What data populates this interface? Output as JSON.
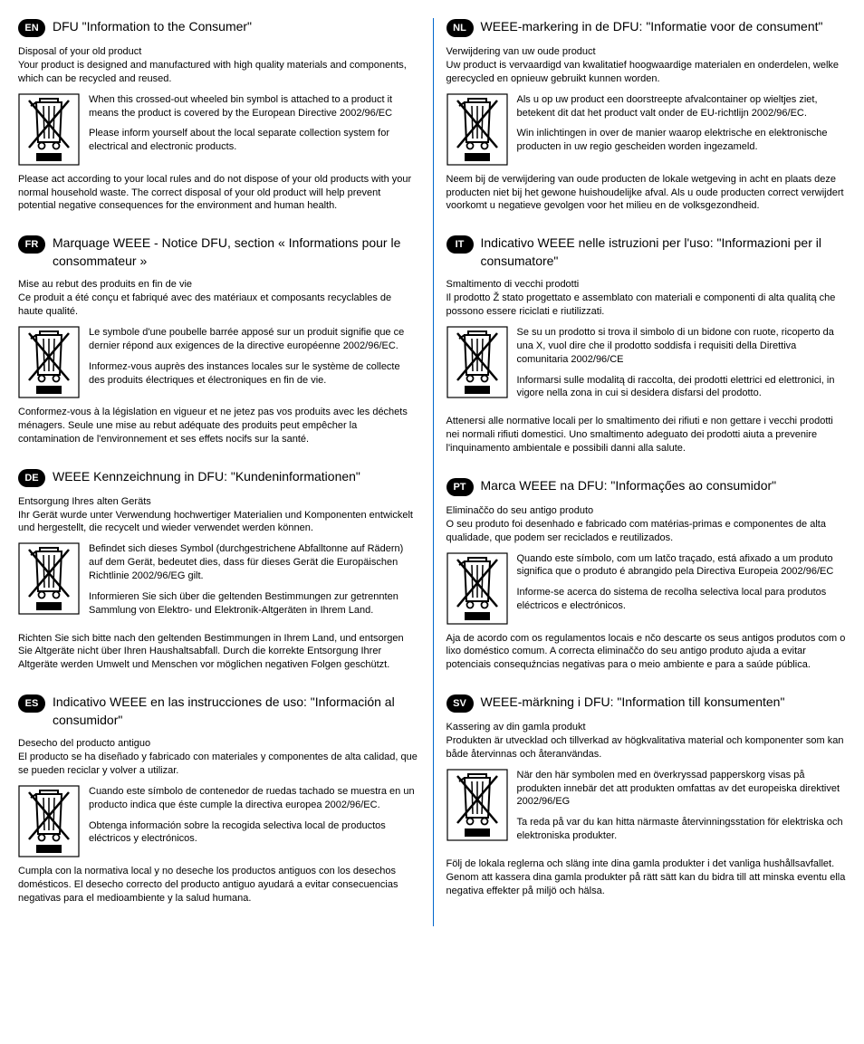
{
  "background_color": "#ffffff",
  "text_color": "#000000",
  "accent_color": "#0066cc",
  "badge_bg": "#000000",
  "badge_fg": "#ffffff",
  "font_family": "Arial, Helvetica, sans-serif",
  "title_fontsize": 14,
  "body_fontsize": 11,
  "icon_stroke": "#000000",
  "icon_fill_bar": "#000000",
  "left": [
    {
      "code": "EN",
      "title": "DFU \"Information to the Consumer\"",
      "intro_sub": "Disposal of your old product",
      "intro": "Your product is designed and manufactured with high quality materials and components, which can be recycled and reused.",
      "p1": "When this crossed-out wheeled bin symbol is attached to a product it means the product is covered by the European Directive 2002/96/EC",
      "p2": "Please inform yourself about the local separate collection system for electrical and electronic products.",
      "outro": "Please act according to your local rules and do not dispose of your old products with your normal household waste. The correct disposal of your old product will help prevent potential negative consequences for the environment and human health."
    },
    {
      "code": "FR",
      "title": "Marquage WEEE - Notice DFU, section « Informations pour le consommateur »",
      "intro_sub": "Mise au rebut des produits en fin de vie",
      "intro": "Ce produit a été conçu et fabriqué avec des matériaux et composants recyclables de haute qualité.",
      "p1": "Le symbole d'une poubelle barrée apposé sur un produit signifie que ce dernier répond aux exigences de la directive européenne 2002/96/EC.",
      "p2": "Informez-vous auprès des instances locales sur le système de collecte des produits électriques et électroniques en fin de vie.",
      "outro": "Conformez-vous à la législation en vigueur et ne jetez pas vos produits avec les déchets ménagers. Seule une mise au rebut adéquate des produits peut empêcher la contamination de l'environnement et ses effets nocifs sur la santé."
    },
    {
      "code": "DE",
      "title": "WEEE Kennzeichnung in DFU: \"Kundeninformationen\"",
      "intro_sub": "Entsorgung Ihres alten Geräts",
      "intro": "Ihr Gerät wurde unter Verwendung hochwertiger Materialien und Komponenten entwickelt und hergestellt, die recycelt und wieder verwendet werden können.",
      "p1": "Befindet sich dieses Symbol (durchgestrichene Abfalltonne auf Rädern) auf dem Gerät, bedeutet dies, dass für dieses Gerät die Europäischen Richtlinie 2002/96/EG gilt.",
      "p2": "Informieren Sie sich über die geltenden Bestimmungen zur getrennten Sammlung von Elektro- und Elektronik-Altgeräten in Ihrem Land.",
      "outro": "Richten Sie sich bitte nach den geltenden Bestimmungen in Ihrem Land, und entsorgen Sie Altgeräte nicht über Ihren Haushaltsabfall. Durch die korrekte Entsorgung Ihrer Altgeräte werden Umwelt und Menschen vor möglichen negativen Folgen geschützt."
    },
    {
      "code": "ES",
      "title": "Indicativo WEEE en las instrucciones de uso: \"Información al consumidor\"",
      "intro_sub": "Desecho del producto antiguo",
      "intro": "El producto se ha diseñado y fabricado con materiales y componentes de alta calidad, que se pueden reciclar y volver a utilizar.",
      "p1": "Cuando este símbolo de contenedor de ruedas tachado se muestra en un producto indica que éste cumple la directiva europea 2002/96/EC.",
      "p2": "Obtenga información sobre la recogida selectiva local de productos eléctricos y electrónicos.",
      "outro": "Cumpla con la normativa local y no deseche los productos antiguos con los desechos domésticos. El desecho correcto del producto antiguo ayudará a evitar consecuencias negativas para el medioambiente y la salud humana."
    }
  ],
  "right": [
    {
      "code": "NL",
      "title": "WEEE-markering in de DFU: \"Informatie voor de consument\"",
      "intro_sub": "Verwijdering van uw oude product",
      "intro": "Uw product is vervaardigd van kwalitatief hoogwaardige materialen en onderdelen, welke gerecycled en opnieuw gebruikt kunnen worden.",
      "p1": "Als u op uw product een doorstreepte afvalcontainer op wieltjes ziet, betekent dit dat het product valt onder de EU-richtlijn 2002/96/EC.",
      "p2": "Win inlichtingen in over de manier waarop elektrische en elektronische producten in uw regio gescheiden worden ingezameld.",
      "outro": "Neem bij de verwijdering van oude producten de lokale wetgeving in acht en plaats deze producten niet bij het gewone huishoudelijke afval. Als u oude producten correct verwijdert voorkomt u negatieve gevolgen voor het milieu en de volksgezondheid."
    },
    {
      "code": "IT",
      "title": "Indicativo WEEE nelle istruzioni per l'uso: \"Informazioni per il consumatore\"",
      "intro_sub": "Smaltimento di vecchi prodotti",
      "intro": "Il prodotto Ž stato progettato e assemblato con materiali e componenti di alta qualitą che possono essere riciclati e riutilizzati.",
      "p1": "Se su un prodotto si trova il simbolo di un bidone con ruote, ricoperto da una X, vuol dire che il prodotto soddisfa i requisiti della Direttiva comunitaria 2002/96/CE",
      "p2": "Informarsi sulle modalitą di raccolta, dei prodotti elettrici ed elettronici, in vigore nella zona in cui si desidera disfarsi del prodotto.",
      "outro": "Attenersi alle normative locali per lo smaltimento dei rifiuti e non gettare i vecchi prodotti nei normali rifiuti domestici. Uno smaltimento adeguato dei prodotti aiuta a prevenire l'inquinamento ambientale e possibili danni alla salute."
    },
    {
      "code": "PT",
      "title": "Marca WEEE na DFU: \"Informaçőes ao consumidor\"",
      "intro_sub": "Eliminaččo do seu antigo produto",
      "intro": "O seu produto foi desenhado e fabricado com matérias-primas e componentes de alta qualidade, que podem ser reciclados e reutilizados.",
      "p1": "Quando este símbolo, com um latčo traçado, está afixado a um produto significa que o produto é abrangido pela Directiva Europeia 2002/96/EC",
      "p2": "Informe-se acerca do sistema de recolha selectiva local para produtos eléctricos e electrónicos.",
      "outro": "Aja de acordo com os regulamentos locais e nčo descarte os seus antigos produtos com o lixo doméstico comum. A correcta eliminaččo do seu antigo produto ajuda a evitar potenciais consequźncias negativas para o meio ambiente e para a saúde pública."
    },
    {
      "code": "SV",
      "title": "WEEE-märkning i DFU: \"Information till konsumenten\"",
      "intro_sub": "Kassering av din gamla produkt",
      "intro": "Produkten är utvecklad och tillverkad av högkvalitativa material och komponenter som kan både återvinnas och återanvändas.",
      "p1": "När den här symbolen med en överkryssad papperskorg visas på produkten innebär det att produkten omfattas av det europeiska direktivet 2002/96/EG",
      "p2": "Ta reda på var du kan hitta närmaste återvinningsstation för elektriska och elektroniska produkter.",
      "outro": "Följ de lokala reglerna och släng inte dina gamla produkter i det vanliga hushållsavfallet. Genom att kassera dina gamla produkter på rätt sätt kan du bidra till att minska eventu ella negativa effekter på miljö och hälsa."
    }
  ]
}
